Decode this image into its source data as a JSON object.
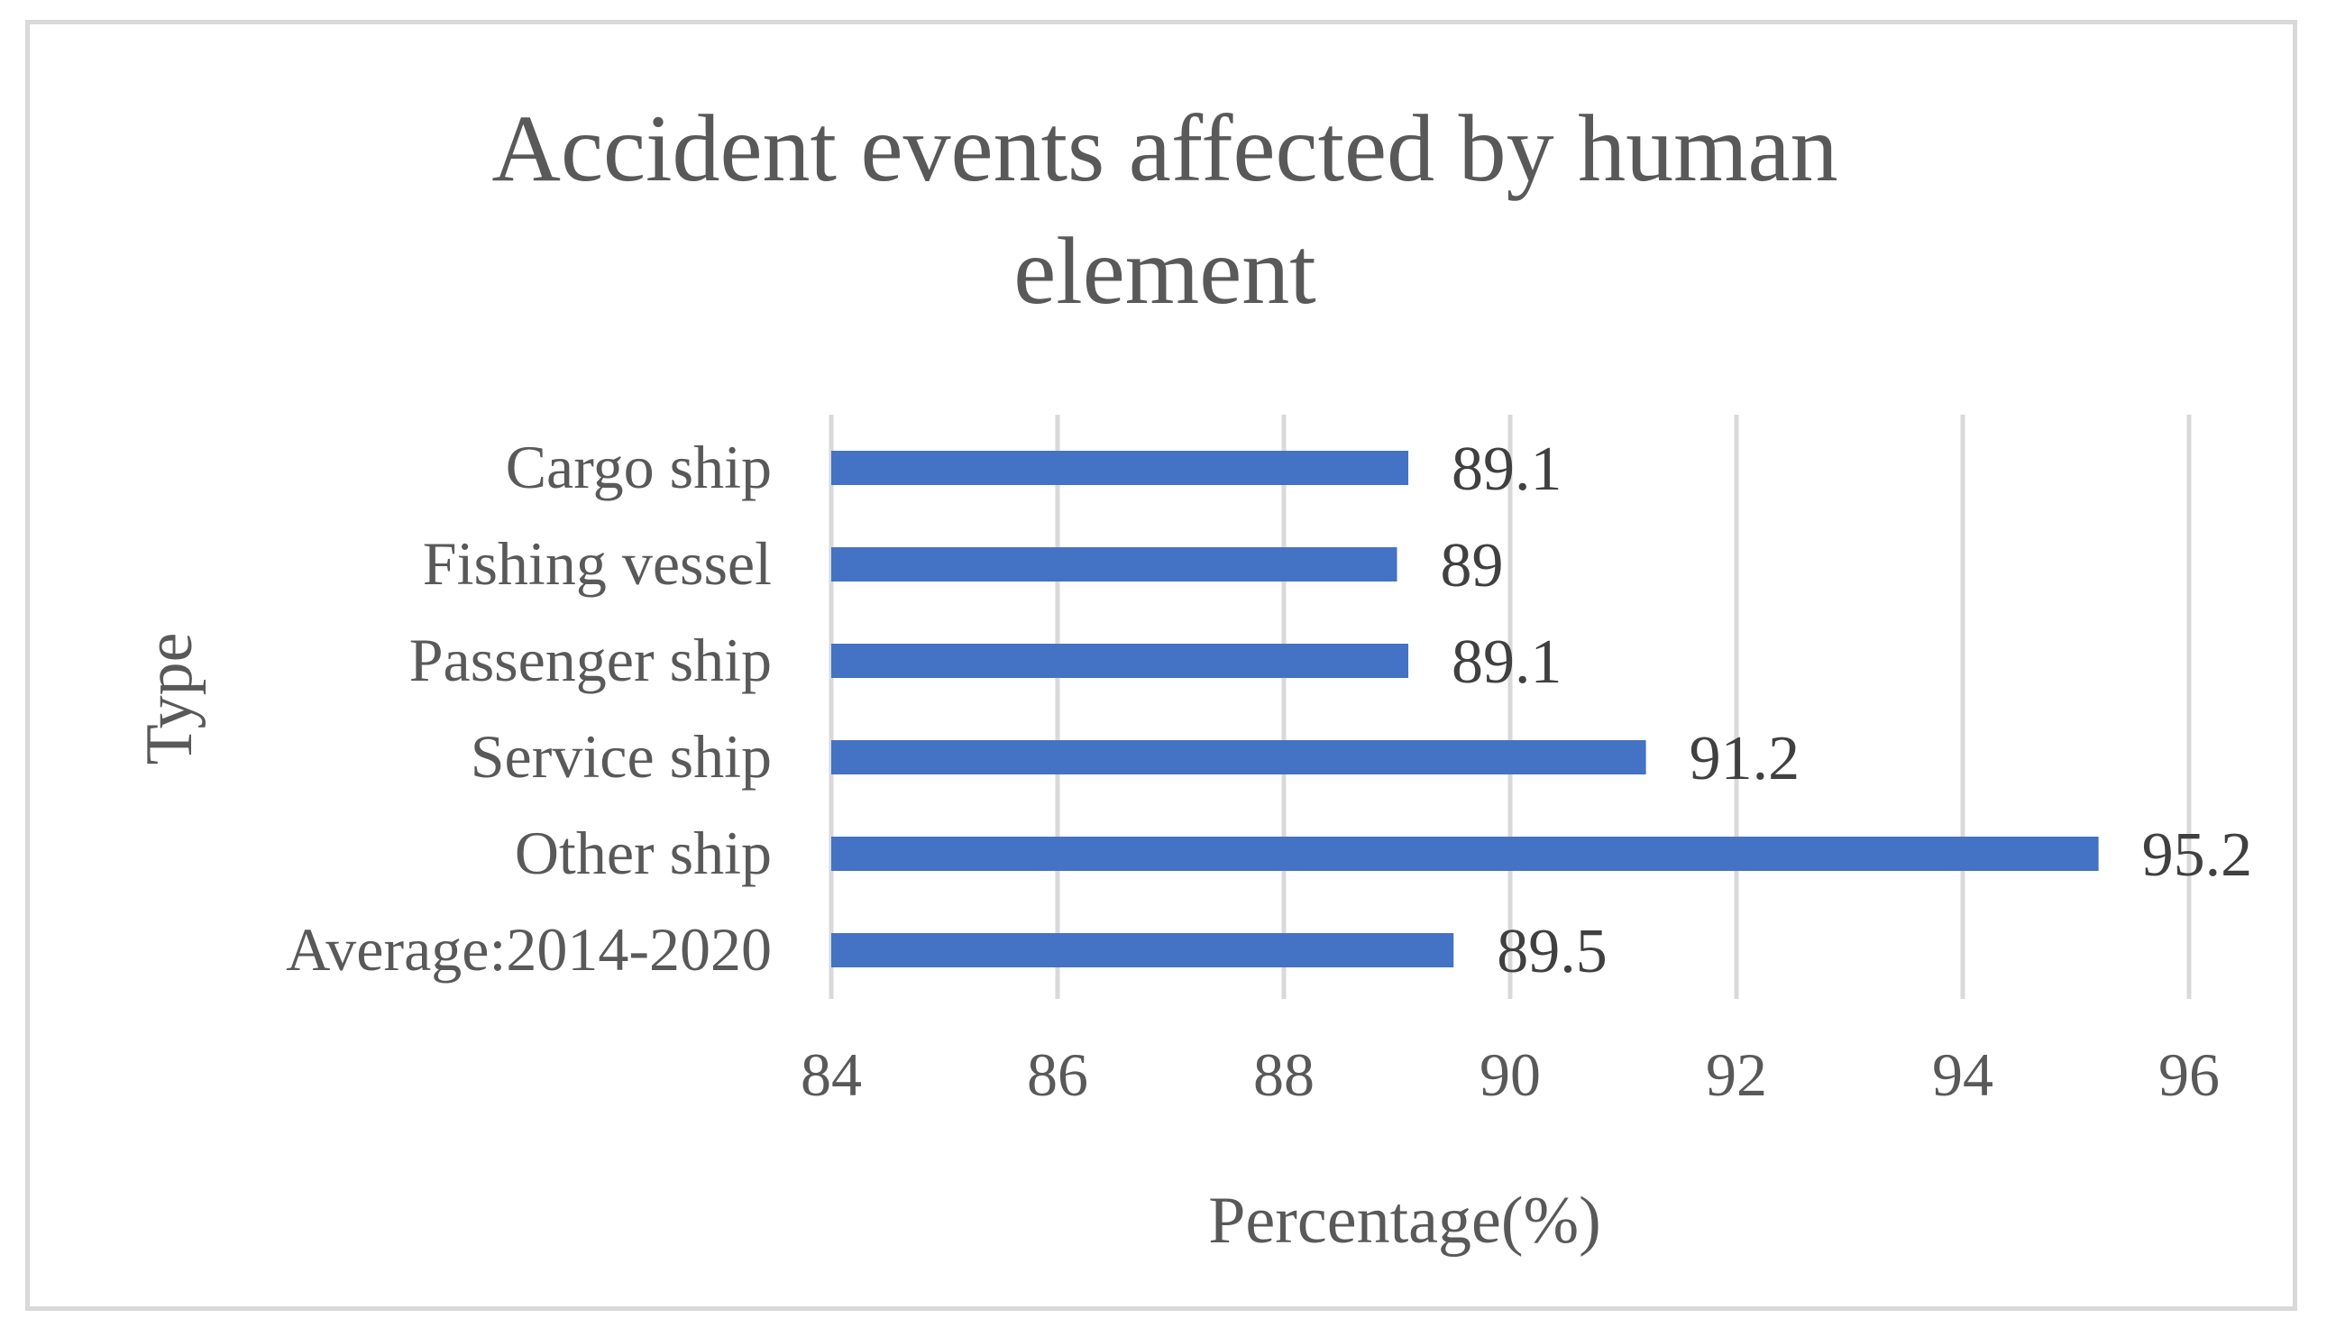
{
  "chart_data": {
    "type": "bar",
    "orientation": "horizontal",
    "title": "Accident events affected by human element",
    "title_lines": [
      "Accident events affected by human",
      "element"
    ],
    "xlabel": "Percentage(%)",
    "ylabel": "Type",
    "categories": [
      "Cargo ship",
      "Fishing vessel",
      "Passenger ship",
      "Service ship",
      "Other ship",
      "Average:2014-2020"
    ],
    "values": [
      89.1,
      89,
      89.1,
      91.2,
      95.2,
      89.5
    ],
    "data_labels": [
      "89.1",
      "89",
      "89.1",
      "91.2",
      "95.2",
      "89.5"
    ],
    "xlim": [
      84,
      96
    ],
    "xticks": [
      84,
      86,
      88,
      90,
      92,
      94,
      96
    ],
    "xtick_labels": [
      "84",
      "86",
      "88",
      "90",
      "92",
      "94",
      "96"
    ],
    "grid": "vertical major gridlines",
    "legend": "none",
    "colors": {
      "bar": "#4472c4",
      "grid": "#d9d9d9",
      "text": "#595959",
      "label": "#404040",
      "border": "#d9d9d9"
    }
  }
}
